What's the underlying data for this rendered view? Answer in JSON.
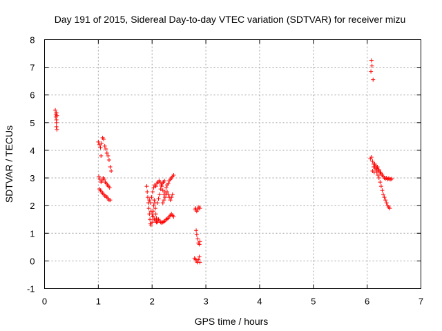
{
  "chart_data": {
    "type": "scatter",
    "title": "Day 191 of 2015, Sidereal Day-to-day VTEC variation (SDTVAR) for receiver mizu",
    "xlabel": "GPS time / hours",
    "ylabel": "SDTVAR / TECUs",
    "xlim": [
      0,
      7
    ],
    "ylim": [
      -1,
      8
    ],
    "xticks": [
      "0",
      "1",
      "2",
      "3",
      "4",
      "5",
      "6",
      "7"
    ],
    "yticks": [
      "-1",
      "0",
      "1",
      "2",
      "3",
      "4",
      "5",
      "6",
      "7",
      "8"
    ],
    "grid": true,
    "marker": "+",
    "color": "#ff0000",
    "series": [
      {
        "name": "SDTVAR",
        "points": [
          [
            0.2,
            5.45
          ],
          [
            0.21,
            5.3
          ],
          [
            0.21,
            5.2
          ],
          [
            0.22,
            5.1
          ],
          [
            0.22,
            5.0
          ],
          [
            0.22,
            4.85
          ],
          [
            0.23,
            4.75
          ],
          [
            0.23,
            5.25
          ],
          [
            0.22,
            5.35
          ],
          [
            1.0,
            4.3
          ],
          [
            1.02,
            4.2
          ],
          [
            1.04,
            4.1
          ],
          [
            1.06,
            4.25
          ],
          [
            1.08,
            4.45
          ],
          [
            1.1,
            4.4
          ],
          [
            1.12,
            4.15
          ],
          [
            1.14,
            4.05
          ],
          [
            1.16,
            3.9
          ],
          [
            1.18,
            3.8
          ],
          [
            1.2,
            3.65
          ],
          [
            1.22,
            3.4
          ],
          [
            1.24,
            3.25
          ],
          [
            1.05,
            3.8
          ],
          [
            1.01,
            3.05
          ],
          [
            1.03,
            2.95
          ],
          [
            1.05,
            2.85
          ],
          [
            1.07,
            2.9
          ],
          [
            1.09,
            3.0
          ],
          [
            1.11,
            2.95
          ],
          [
            1.13,
            2.85
          ],
          [
            1.15,
            2.8
          ],
          [
            1.17,
            2.75
          ],
          [
            1.19,
            2.7
          ],
          [
            1.21,
            2.65
          ],
          [
            1.02,
            2.6
          ],
          [
            1.04,
            2.55
          ],
          [
            1.06,
            2.5
          ],
          [
            1.08,
            2.45
          ],
          [
            1.1,
            2.4
          ],
          [
            1.12,
            2.35
          ],
          [
            1.14,
            2.35
          ],
          [
            1.16,
            2.3
          ],
          [
            1.18,
            2.25
          ],
          [
            1.2,
            2.2
          ],
          [
            1.22,
            2.2
          ],
          [
            1.9,
            2.7
          ],
          [
            1.91,
            2.5
          ],
          [
            1.92,
            2.3
          ],
          [
            1.93,
            2.1
          ],
          [
            1.94,
            1.9
          ],
          [
            1.95,
            1.7
          ],
          [
            1.96,
            1.5
          ],
          [
            1.97,
            1.35
          ],
          [
            1.98,
            1.3
          ],
          [
            2.0,
            1.4
          ],
          [
            2.01,
            1.6
          ],
          [
            2.02,
            1.8
          ],
          [
            2.03,
            2.0
          ],
          [
            2.04,
            2.2
          ],
          [
            2.05,
            2.1
          ],
          [
            2.06,
            1.9
          ],
          [
            2.07,
            1.7
          ],
          [
            2.08,
            1.55
          ],
          [
            2.09,
            1.45
          ],
          [
            2.1,
            1.4
          ],
          [
            1.95,
            2.2
          ],
          [
            1.97,
            2.1
          ],
          [
            1.99,
            2.3
          ],
          [
            2.01,
            2.5
          ],
          [
            2.03,
            2.65
          ],
          [
            2.05,
            2.75
          ],
          [
            2.07,
            2.7
          ],
          [
            2.09,
            2.8
          ],
          [
            2.11,
            2.85
          ],
          [
            2.13,
            2.9
          ],
          [
            2.15,
            2.85
          ],
          [
            2.17,
            2.75
          ],
          [
            2.19,
            2.8
          ],
          [
            2.21,
            2.85
          ],
          [
            2.23,
            2.9
          ],
          [
            2.1,
            2.1
          ],
          [
            2.12,
            2.25
          ],
          [
            2.14,
            2.4
          ],
          [
            2.16,
            2.6
          ],
          [
            2.18,
            2.7
          ],
          [
            2.2,
            2.55
          ],
          [
            2.22,
            2.4
          ],
          [
            2.24,
            2.5
          ],
          [
            2.26,
            2.65
          ],
          [
            2.28,
            2.75
          ],
          [
            2.3,
            2.8
          ],
          [
            2.32,
            2.9
          ],
          [
            2.34,
            2.95
          ],
          [
            2.36,
            3.0
          ],
          [
            2.38,
            3.05
          ],
          [
            2.4,
            3.1
          ],
          [
            2.2,
            2.1
          ],
          [
            2.22,
            2.2
          ],
          [
            2.24,
            2.3
          ],
          [
            2.26,
            2.4
          ],
          [
            2.28,
            2.5
          ],
          [
            2.3,
            2.4
          ],
          [
            2.32,
            2.3
          ],
          [
            2.34,
            2.2
          ],
          [
            2.36,
            2.3
          ],
          [
            2.38,
            2.4
          ],
          [
            2.12,
            1.5
          ],
          [
            2.14,
            1.45
          ],
          [
            2.16,
            1.4
          ],
          [
            2.18,
            1.38
          ],
          [
            2.2,
            1.4
          ],
          [
            2.22,
            1.42
          ],
          [
            2.24,
            1.45
          ],
          [
            2.26,
            1.5
          ],
          [
            2.28,
            1.52
          ],
          [
            2.3,
            1.55
          ],
          [
            2.32,
            1.6
          ],
          [
            2.34,
            1.65
          ],
          [
            2.36,
            1.7
          ],
          [
            2.38,
            1.65
          ],
          [
            2.4,
            1.6
          ],
          [
            1.98,
            1.8
          ],
          [
            2.0,
            1.7
          ],
          [
            2.02,
            1.6
          ],
          [
            2.04,
            1.5
          ],
          [
            2.06,
            1.45
          ],
          [
            2.08,
            1.4
          ],
          [
            2.8,
            1.85
          ],
          [
            2.81,
            1.9
          ],
          [
            2.83,
            1.8
          ],
          [
            2.85,
            1.85
          ],
          [
            2.87,
            1.95
          ],
          [
            2.89,
            1.9
          ],
          [
            2.82,
            1.1
          ],
          [
            2.83,
            0.95
          ],
          [
            2.85,
            0.8
          ],
          [
            2.86,
            0.65
          ],
          [
            2.88,
            0.6
          ],
          [
            2.89,
            0.7
          ],
          [
            2.79,
            0.1
          ],
          [
            2.81,
            0.05
          ],
          [
            2.83,
            0.0
          ],
          [
            2.84,
            -0.05
          ],
          [
            2.86,
            0.05
          ],
          [
            2.88,
            0.15
          ],
          [
            2.89,
            -0.05
          ],
          [
            6.07,
            6.85
          ],
          [
            6.09,
            7.05
          ],
          [
            6.08,
            7.25
          ],
          [
            6.11,
            6.55
          ],
          [
            6.06,
            3.7
          ],
          [
            6.08,
            3.75
          ],
          [
            6.1,
            3.6
          ],
          [
            6.12,
            3.5
          ],
          [
            6.14,
            3.4
          ],
          [
            6.16,
            3.3
          ],
          [
            6.18,
            3.2
          ],
          [
            6.2,
            3.1
          ],
          [
            6.22,
            3.0
          ],
          [
            6.24,
            2.85
          ],
          [
            6.26,
            2.7
          ],
          [
            6.28,
            2.55
          ],
          [
            6.3,
            2.4
          ],
          [
            6.32,
            2.3
          ],
          [
            6.34,
            2.2
          ],
          [
            6.36,
            2.1
          ],
          [
            6.38,
            2.0
          ],
          [
            6.4,
            1.95
          ],
          [
            6.42,
            1.9
          ],
          [
            6.12,
            3.4
          ],
          [
            6.14,
            3.5
          ],
          [
            6.16,
            3.45
          ],
          [
            6.18,
            3.35
          ],
          [
            6.2,
            3.3
          ],
          [
            6.22,
            3.25
          ],
          [
            6.24,
            3.2
          ],
          [
            6.26,
            3.15
          ],
          [
            6.28,
            3.1
          ],
          [
            6.3,
            3.05
          ],
          [
            6.32,
            3.0
          ],
          [
            6.34,
            2.98
          ],
          [
            6.36,
            3.0
          ],
          [
            6.38,
            2.95
          ],
          [
            6.4,
            2.98
          ],
          [
            6.42,
            2.96
          ],
          [
            6.44,
            2.95
          ],
          [
            6.46,
            2.97
          ],
          [
            6.1,
            3.25
          ],
          [
            6.13,
            3.2
          ],
          [
            6.16,
            3.3
          ],
          [
            6.19,
            3.4
          ],
          [
            6.22,
            3.3
          ],
          [
            6.25,
            3.2
          ]
        ]
      }
    ]
  }
}
